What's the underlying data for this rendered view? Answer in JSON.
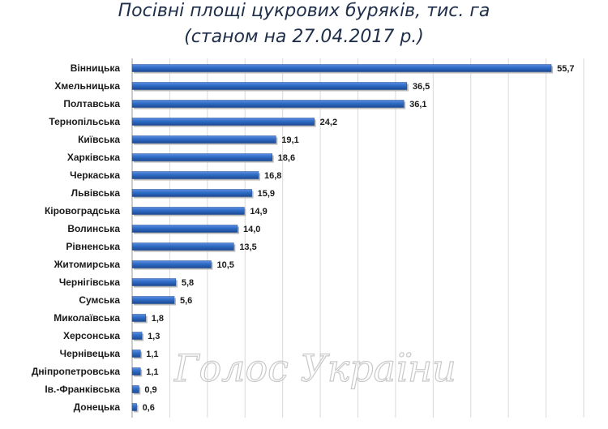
{
  "chart_data": {
    "type": "bar",
    "orientation": "horizontal",
    "title_line1": "Посівні  площі цукрових буряків, тис. га",
    "title_line2": "(станом на 27.04.2017 р.)",
    "categories": [
      "Вінницька",
      "Хмельницька",
      "Полтавська",
      "Тернопільська",
      "Київська",
      "Харківська",
      "Черкаська",
      "Львівська",
      "Кіровоградська",
      "Волинська",
      "Рівненська",
      "Житомирська",
      "Чернігівська",
      "Сумська",
      "Миколаївська",
      "Херсонська",
      "Чернівецька",
      "Дніпропетровська",
      "Ів.-Франківська",
      "Донецька"
    ],
    "values": [
      55.7,
      36.5,
      36.1,
      24.2,
      19.1,
      18.6,
      16.8,
      15.9,
      14.9,
      14.0,
      13.5,
      10.5,
      5.8,
      5.6,
      1.8,
      1.3,
      1.1,
      1.1,
      0.9,
      0.6
    ],
    "value_labels": [
      "55,7",
      "36,5",
      "36,1",
      "24,2",
      "19,1",
      "18,6",
      "16,8",
      "15,9",
      "14,9",
      "14,0",
      "13,5",
      "10,5",
      "5,8",
      "5,6",
      "1,8",
      "1,3",
      "1,1",
      "1,1",
      "0,9",
      "0,6"
    ],
    "xlim": [
      0,
      60
    ],
    "grid": true,
    "bar_color": "#2e6bc6",
    "watermark": "Голос України"
  }
}
